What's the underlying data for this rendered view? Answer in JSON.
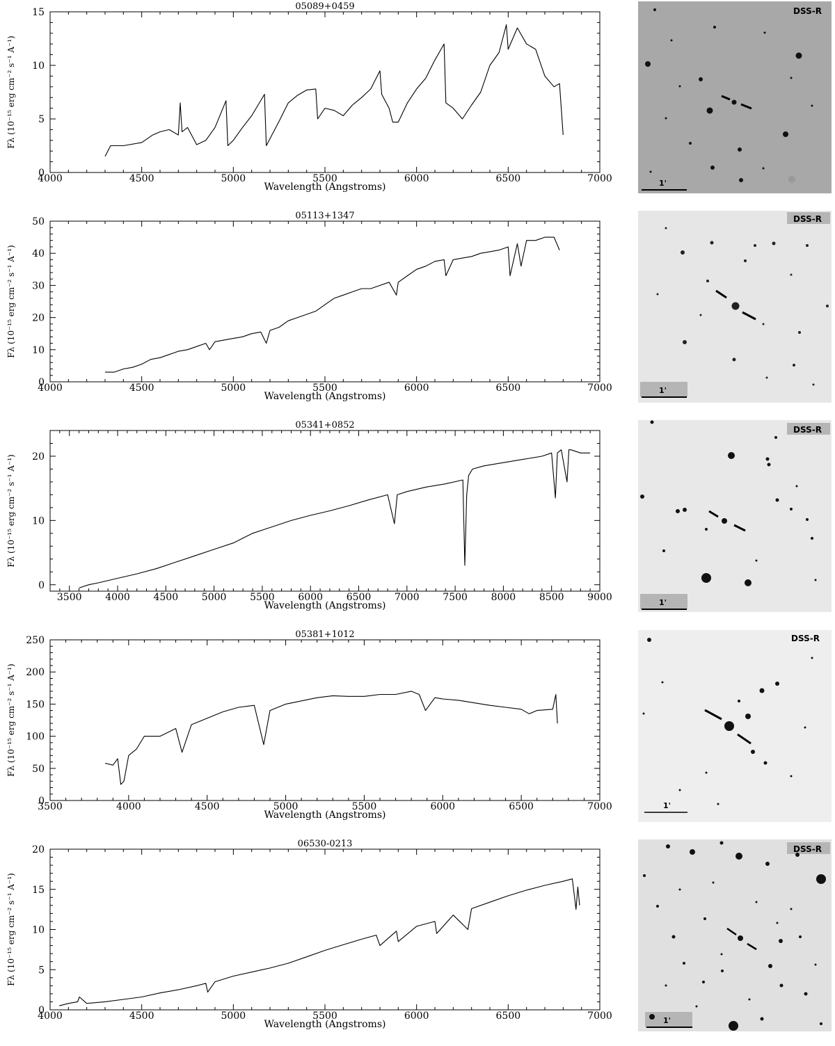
{
  "chart_data": [
    {
      "type": "line",
      "title": "05089+0459",
      "xlabel": "Wavelength (Angstroms)",
      "ylabel": "Fλ (10⁻¹⁵ erg cm⁻² s⁻¹ A⁻¹)",
      "xlim": [
        4000,
        7000
      ],
      "ylim": [
        0,
        15
      ],
      "xticks": [
        4000,
        4500,
        5000,
        5500,
        6000,
        6500,
        7000
      ],
      "yticks": [
        0,
        5,
        10,
        15
      ],
      "x": [
        4300,
        4330,
        4400,
        4500,
        4560,
        4600,
        4650,
        4700,
        4710,
        4720,
        4750,
        4800,
        4850,
        4900,
        4960,
        4970,
        5000,
        5050,
        5100,
        5170,
        5180,
        5250,
        5300,
        5350,
        5400,
        5450,
        5460,
        5500,
        5550,
        5600,
        5650,
        5700,
        5750,
        5800,
        5810,
        5850,
        5870,
        5900,
        5950,
        6000,
        6050,
        6100,
        6150,
        6160,
        6200,
        6250,
        6300,
        6350,
        6400,
        6450,
        6490,
        6500,
        6550,
        6600,
        6650,
        6700,
        6750,
        6780,
        6800
      ],
      "y": [
        1.5,
        2.5,
        2.5,
        2.8,
        3.5,
        3.8,
        4.0,
        3.5,
        6.5,
        3.8,
        4.2,
        2.6,
        3.0,
        4.2,
        6.7,
        2.5,
        3.0,
        4.2,
        5.3,
        7.3,
        2.5,
        4.8,
        6.5,
        7.2,
        7.7,
        7.8,
        5.0,
        6.0,
        5.8,
        5.3,
        6.3,
        7.0,
        7.8,
        9.5,
        7.3,
        6.0,
        4.7,
        4.7,
        6.5,
        7.8,
        8.8,
        10.5,
        12.0,
        6.5,
        6.0,
        5.0,
        6.3,
        7.5,
        10.0,
        11.2,
        13.8,
        11.5,
        13.5,
        12.0,
        11.5,
        9.0,
        8.0,
        8.3,
        3.5
      ],
      "image": {
        "band_label": "DSS-R",
        "scale_label": "1'"
      }
    },
    {
      "type": "line",
      "title": "05113+1347",
      "xlabel": "Wavelength (Angstroms)",
      "ylabel": "Fλ (10⁻¹⁵ erg cm⁻² s⁻¹ A⁻¹)",
      "xlim": [
        4000,
        7000
      ],
      "ylim": [
        0,
        50
      ],
      "xticks": [
        4000,
        4500,
        5000,
        5500,
        6000,
        6500,
        7000
      ],
      "yticks": [
        0,
        10,
        20,
        30,
        40,
        50
      ],
      "x": [
        4300,
        4350,
        4400,
        4450,
        4500,
        4550,
        4600,
        4650,
        4700,
        4750,
        4800,
        4850,
        4870,
        4900,
        4950,
        5000,
        5050,
        5100,
        5150,
        5180,
        5200,
        5250,
        5300,
        5350,
        5400,
        5450,
        5500,
        5550,
        5600,
        5650,
        5700,
        5750,
        5800,
        5850,
        5890,
        5900,
        5950,
        6000,
        6050,
        6100,
        6150,
        6160,
        6200,
        6250,
        6300,
        6350,
        6400,
        6450,
        6500,
        6510,
        6550,
        6570,
        6600,
        6650,
        6700,
        6750,
        6780
      ],
      "y": [
        3,
        3,
        4,
        4.5,
        5.5,
        7,
        7.5,
        8.5,
        9.5,
        10,
        11,
        12,
        10,
        12.5,
        13,
        13.5,
        14,
        15,
        15.5,
        12,
        16,
        17,
        19,
        20,
        21,
        22,
        24,
        26,
        27,
        28,
        29,
        29,
        30,
        31,
        27,
        31,
        33,
        35,
        36,
        37.5,
        38,
        33,
        38,
        38.5,
        39,
        40,
        40.5,
        41,
        42,
        33,
        43,
        36,
        44,
        44,
        45,
        45,
        41
      ]
    },
    {
      "type": "line",
      "title": "05341+0852",
      "xlabel": "Wavelength (Angstroms)",
      "ylabel": "Fλ (10⁻¹⁵ erg cm⁻² s⁻¹ A⁻¹)",
      "xlim": [
        3300,
        9000
      ],
      "ylim": [
        -1,
        24
      ],
      "xticks": [
        3500,
        4000,
        4500,
        5000,
        5500,
        6000,
        6500,
        7000,
        7500,
        8000,
        8500,
        9000
      ],
      "yticks": [
        0,
        10,
        20
      ],
      "x": [
        3600,
        3700,
        3800,
        4000,
        4200,
        4400,
        4600,
        4800,
        5000,
        5200,
        5400,
        5600,
        5800,
        6000,
        6200,
        6400,
        6600,
        6800,
        6870,
        6900,
        7000,
        7200,
        7400,
        7580,
        7600,
        7620,
        7640,
        7680,
        7800,
        8000,
        8200,
        8400,
        8500,
        8540,
        8560,
        8600,
        8660,
        8680,
        8700,
        8800,
        8900
      ],
      "y": [
        -0.5,
        0,
        0.3,
        1,
        1.7,
        2.5,
        3.5,
        4.5,
        5.5,
        6.5,
        8,
        9,
        10,
        10.8,
        11.5,
        12.3,
        13.2,
        14,
        9.5,
        14,
        14.5,
        15.2,
        15.7,
        16.3,
        3,
        14,
        17,
        18,
        18.5,
        19,
        19.5,
        20,
        20.5,
        13.5,
        20.5,
        21,
        16,
        21,
        21,
        20.5,
        20.5
      ]
    },
    {
      "type": "line",
      "title": "05381+1012",
      "xlabel": "Wavelength (Angstroms)",
      "ylabel": "Fλ (10⁻¹⁵ erg cm⁻² s⁻¹ A⁻¹)",
      "xlim": [
        3500,
        7000
      ],
      "ylim": [
        0,
        250
      ],
      "xticks": [
        3500,
        4000,
        4500,
        5000,
        5500,
        6000,
        6500,
        7000
      ],
      "yticks": [
        0,
        50,
        100,
        150,
        200,
        250
      ],
      "x": [
        3850,
        3900,
        3930,
        3950,
        3970,
        4000,
        4050,
        4100,
        4200,
        4300,
        4340,
        4400,
        4500,
        4600,
        4700,
        4800,
        4860,
        4900,
        5000,
        5100,
        5200,
        5300,
        5400,
        5500,
        5600,
        5700,
        5800,
        5850,
        5890,
        5950,
        6000,
        6100,
        6200,
        6300,
        6400,
        6500,
        6550,
        6600,
        6700,
        6720,
        6730
      ],
      "y": [
        58,
        55,
        65,
        25,
        30,
        70,
        80,
        100,
        100,
        112,
        75,
        118,
        128,
        138,
        145,
        148,
        87,
        140,
        150,
        155,
        160,
        163,
        162,
        162,
        165,
        165,
        170,
        165,
        140,
        160,
        158,
        156,
        152,
        148,
        145,
        142,
        135,
        140,
        142,
        165,
        120
      ]
    },
    {
      "type": "line",
      "title": "06530-0213",
      "xlabel": "Wavelength (Angstroms)",
      "ylabel": "Fλ (10⁻¹⁵ erg cm⁻² s⁻¹ A⁻¹)",
      "xlim": [
        4000,
        7000
      ],
      "ylim": [
        0,
        20
      ],
      "xticks": [
        4000,
        4500,
        5000,
        5500,
        6000,
        6500,
        7000
      ],
      "yticks": [
        0,
        5,
        10,
        15,
        20
      ],
      "x": [
        4050,
        4100,
        4150,
        4160,
        4200,
        4300,
        4400,
        4500,
        4600,
        4700,
        4800,
        4850,
        4860,
        4900,
        5000,
        5100,
        5200,
        5300,
        5400,
        5500,
        5600,
        5700,
        5780,
        5800,
        5890,
        5900,
        6000,
        6100,
        6110,
        6200,
        6280,
        6300,
        6400,
        6500,
        6600,
        6700,
        6800,
        6850,
        6870,
        6880,
        6890
      ],
      "y": [
        0.5,
        0.8,
        1.0,
        1.6,
        0.8,
        1.0,
        1.3,
        1.6,
        2.1,
        2.5,
        3.0,
        3.3,
        2.2,
        3.5,
        4.2,
        4.7,
        5.2,
        5.8,
        6.6,
        7.4,
        8.1,
        8.8,
        9.3,
        8.0,
        9.8,
        8.5,
        10.4,
        11.0,
        9.5,
        11.8,
        10.0,
        12.6,
        13.4,
        14.2,
        14.9,
        15.5,
        16.0,
        16.3,
        12.5,
        15.3,
        13.0
      ]
    }
  ],
  "images": [
    {
      "band_label": "DSS-R",
      "scale_label": "1'"
    },
    {
      "band_label": "DSS-R",
      "scale_label": "1'"
    },
    {
      "band_label": "DSS-R",
      "scale_label": "1'"
    },
    {
      "band_label": "DSS-R",
      "scale_label": "1'"
    },
    {
      "band_label": "DSS-R",
      "scale_label": "1'"
    }
  ],
  "colors": {
    "ink": "#000000",
    "dss_bg_dark": "#a9a9a9",
    "dss_bg_light": "#e8e8e8"
  }
}
